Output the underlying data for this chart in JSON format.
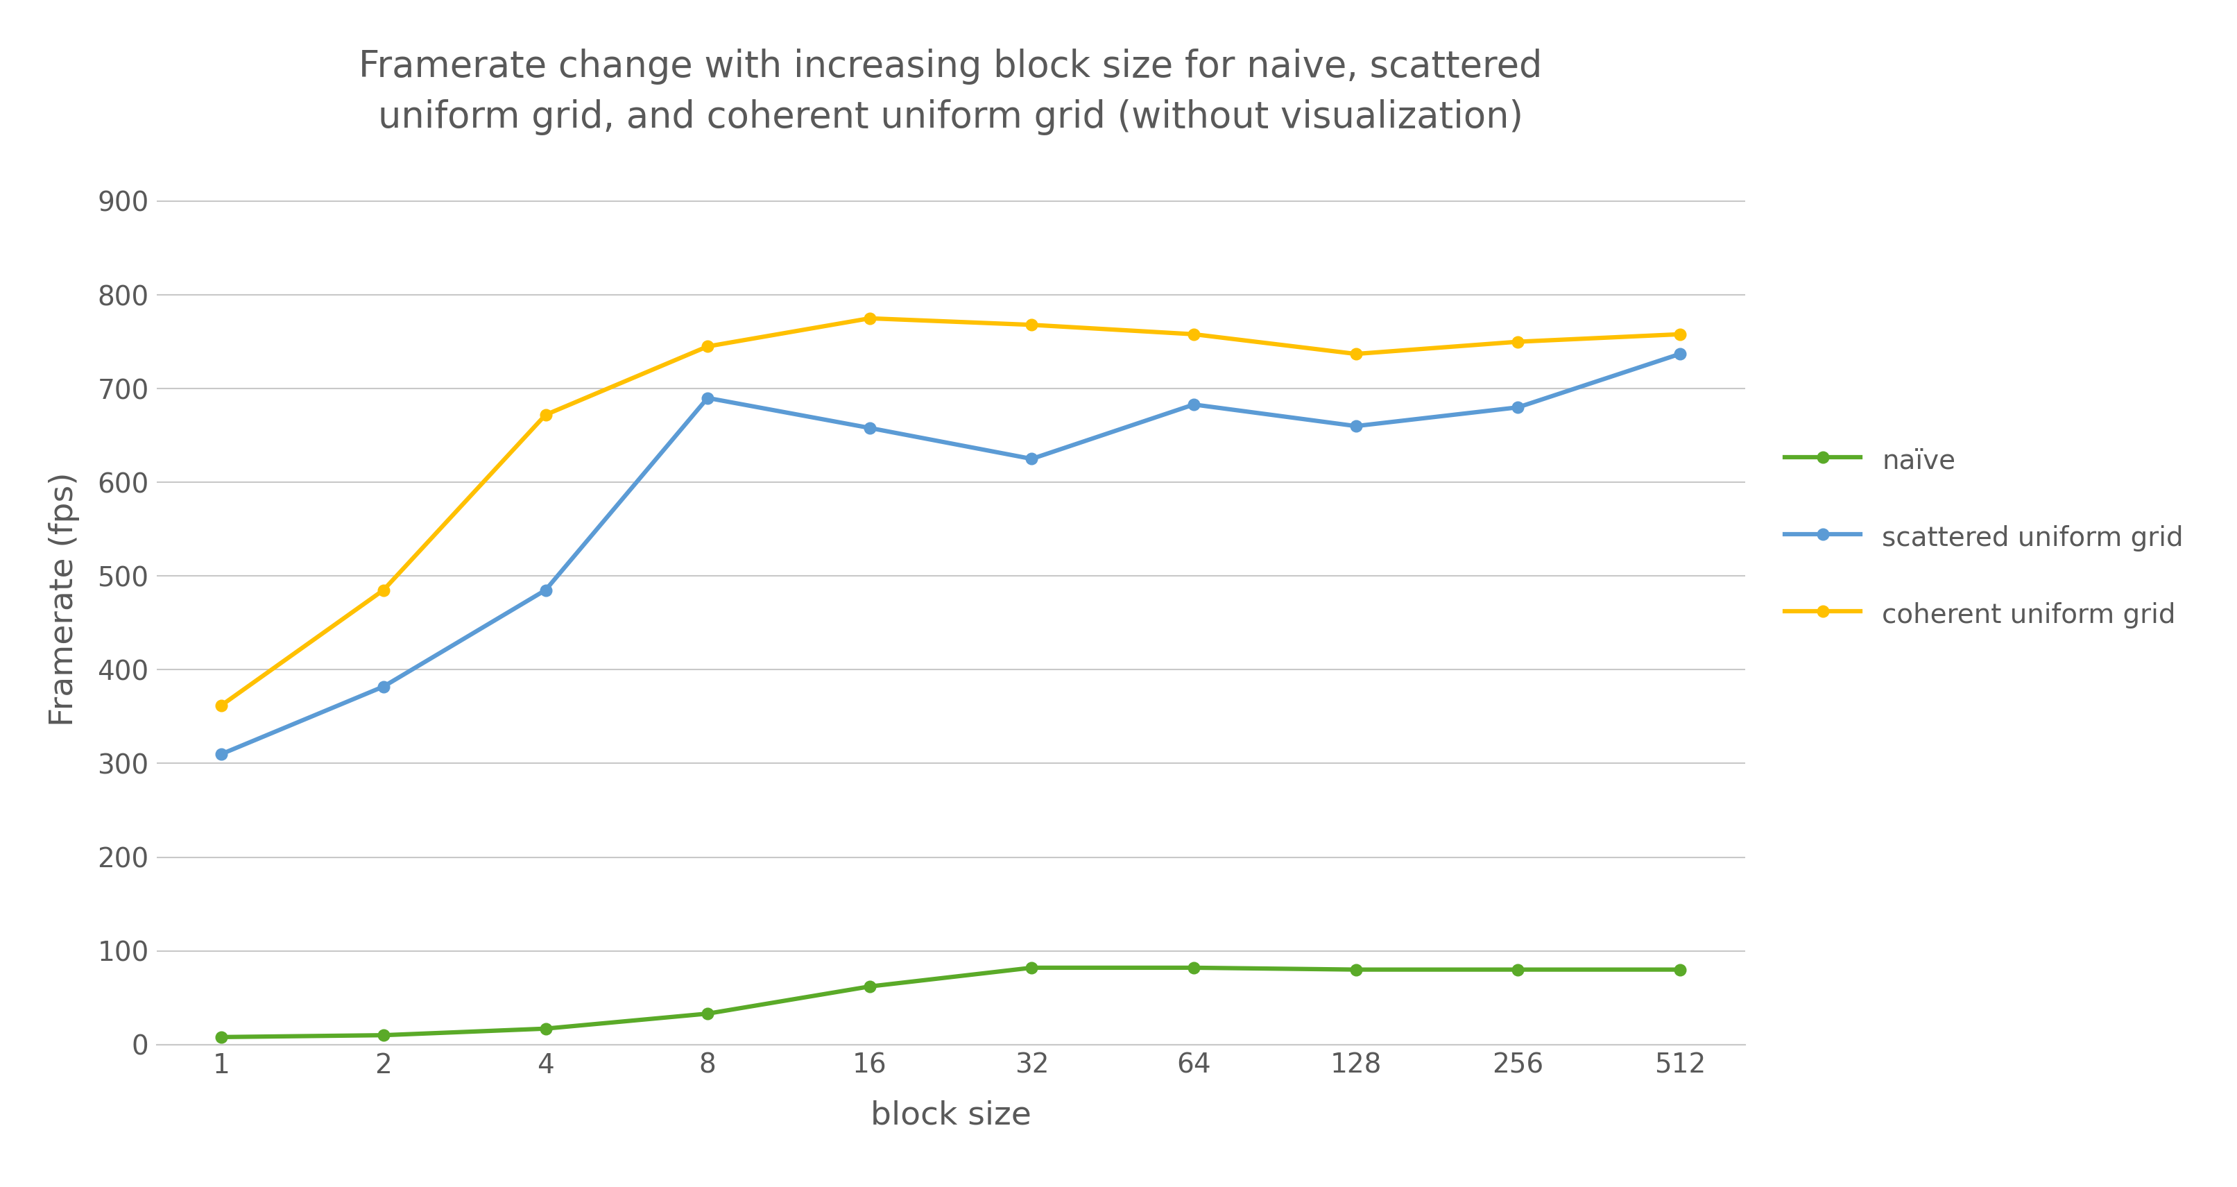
{
  "title_line1": "Framerate change with increasing block size for naive, scattered",
  "title_line2": "uniform grid, and coherent uniform grid (without visualization)",
  "xlabel": "block size",
  "ylabel": "Framerate (fps)",
  "x_labels": [
    "1",
    "2",
    "4",
    "8",
    "16",
    "32",
    "64",
    "128",
    "256",
    "512"
  ],
  "x_values": [
    1,
    2,
    4,
    8,
    16,
    32,
    64,
    128,
    256,
    512
  ],
  "naive": [
    8,
    10,
    17,
    33,
    62,
    82,
    82,
    80,
    80,
    80
  ],
  "scattered": [
    310,
    382,
    485,
    690,
    658,
    625,
    683,
    660,
    680,
    737
  ],
  "coherent": [
    362,
    485,
    672,
    745,
    775,
    768,
    758,
    737,
    750,
    758
  ],
  "naive_color": "#5aaa28",
  "scattered_color": "#5b9bd5",
  "coherent_color": "#ffc000",
  "background_color": "#ffffff",
  "grid_color": "#c8c8c8",
  "title_color": "#595959",
  "label_color": "#595959",
  "tick_color": "#595959",
  "ylim": [
    0,
    950
  ],
  "yticks": [
    0,
    100,
    200,
    300,
    400,
    500,
    600,
    700,
    800,
    900
  ],
  "legend_labels": [
    "naïve",
    "scattered uniform grid",
    "coherent uniform grid"
  ],
  "title_fontsize": 38,
  "axis_label_fontsize": 34,
  "tick_fontsize": 28,
  "legend_fontsize": 28,
  "line_width": 4.5,
  "marker_size": 12
}
